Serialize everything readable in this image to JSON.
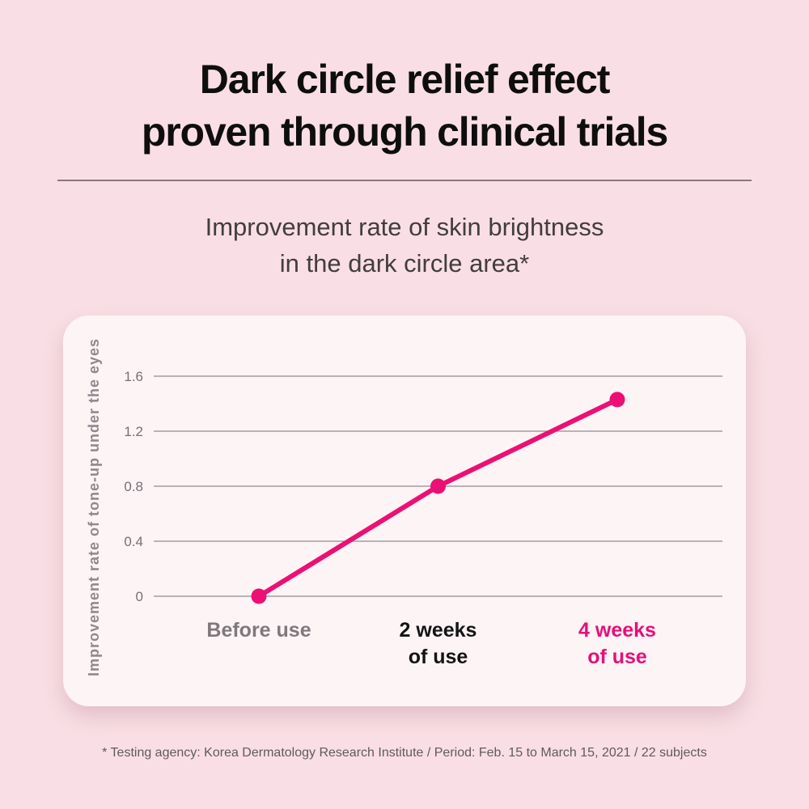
{
  "palette": {
    "background": "#f9dfe5",
    "card_background": "#fdf4f6",
    "accent_pink": "#ec1074",
    "title_color": "#0f0e0f",
    "divider_color": "#8b767f"
  },
  "header": {
    "title_line1": "Dark circle relief effect",
    "title_line2": "proven through clinical trials",
    "subtitle_line1": "Improvement rate of skin brightness",
    "subtitle_line2": "in the dark circle area*"
  },
  "chart_data": {
    "type": "line",
    "title": "Improvement rate of skin brightness in the dark circle area*",
    "ylabel": "Improvement rate of tone-up under the eyes",
    "xlabel": "",
    "categories": [
      {
        "lines": [
          "Before use"
        ],
        "color": "#7e797c"
      },
      {
        "lines": [
          "2 weeks",
          "of use"
        ],
        "color": "#141414"
      },
      {
        "lines": [
          "4 weeks",
          "of use"
        ],
        "color": "#e70e79"
      }
    ],
    "values": [
      0,
      0.8,
      1.43
    ],
    "yticks": [
      0,
      0.4,
      0.8,
      1.2,
      1.6
    ],
    "ylim": [
      0,
      1.6
    ],
    "grid": true,
    "legend": "none",
    "series_color": "#ec1074",
    "grid_color": "#908c8f",
    "tick_color": "#767074",
    "axis_label_color": "#8e898c"
  },
  "footnote": "* Testing agency: Korea Dermatology Research Institute / Period: Feb. 15 to March 15, 2021 / 22 subjects"
}
